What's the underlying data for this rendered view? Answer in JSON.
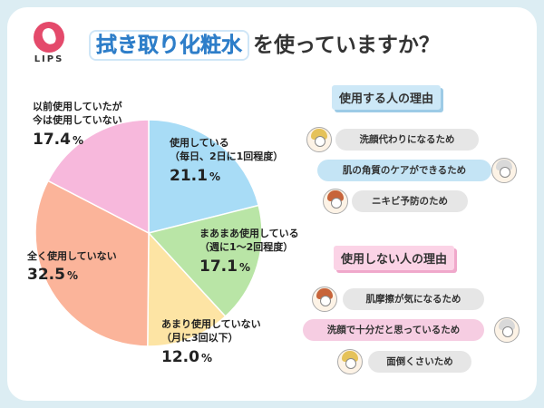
{
  "brand": {
    "logo_text": "LIPS"
  },
  "header": {
    "title_highlight": "拭き取り化粧水",
    "title_rest": "を使っていますか？"
  },
  "chart_data": {
    "type": "pie",
    "slices": [
      {
        "label_line1": "使用している",
        "label_line2": "（毎日、2日に1回程度）",
        "value": 21.1,
        "color": "#a8dcf6"
      },
      {
        "label_line1": "まあまあ使用している",
        "label_line2": "（週に1〜2回程度）",
        "value": 17.1,
        "color": "#b9e5a6"
      },
      {
        "label_line1": "あまり使用していない",
        "label_line2": "（月に3回以下）",
        "value": 12.0,
        "color": "#fde4a4"
      },
      {
        "label_line1": "全く使用していない",
        "label_line2": "",
        "value": 32.5,
        "color": "#fbb49a"
      },
      {
        "label_line1": "以前使用していたが",
        "label_line2": "今は使用していない",
        "value": 17.4,
        "color": "#f7b8dc"
      }
    ],
    "unit": "%"
  },
  "reasons_use": {
    "title": "使用する人の理由",
    "items": [
      "洗顔代わりになるため",
      "肌の角質のケアができるため",
      "ニキビ予防のため"
    ]
  },
  "reasons_not_use": {
    "title": "使用しない人の理由",
    "items": [
      "肌摩擦が気になるため",
      "洗顔で十分だと思っているため",
      "面倒くさいため"
    ]
  }
}
